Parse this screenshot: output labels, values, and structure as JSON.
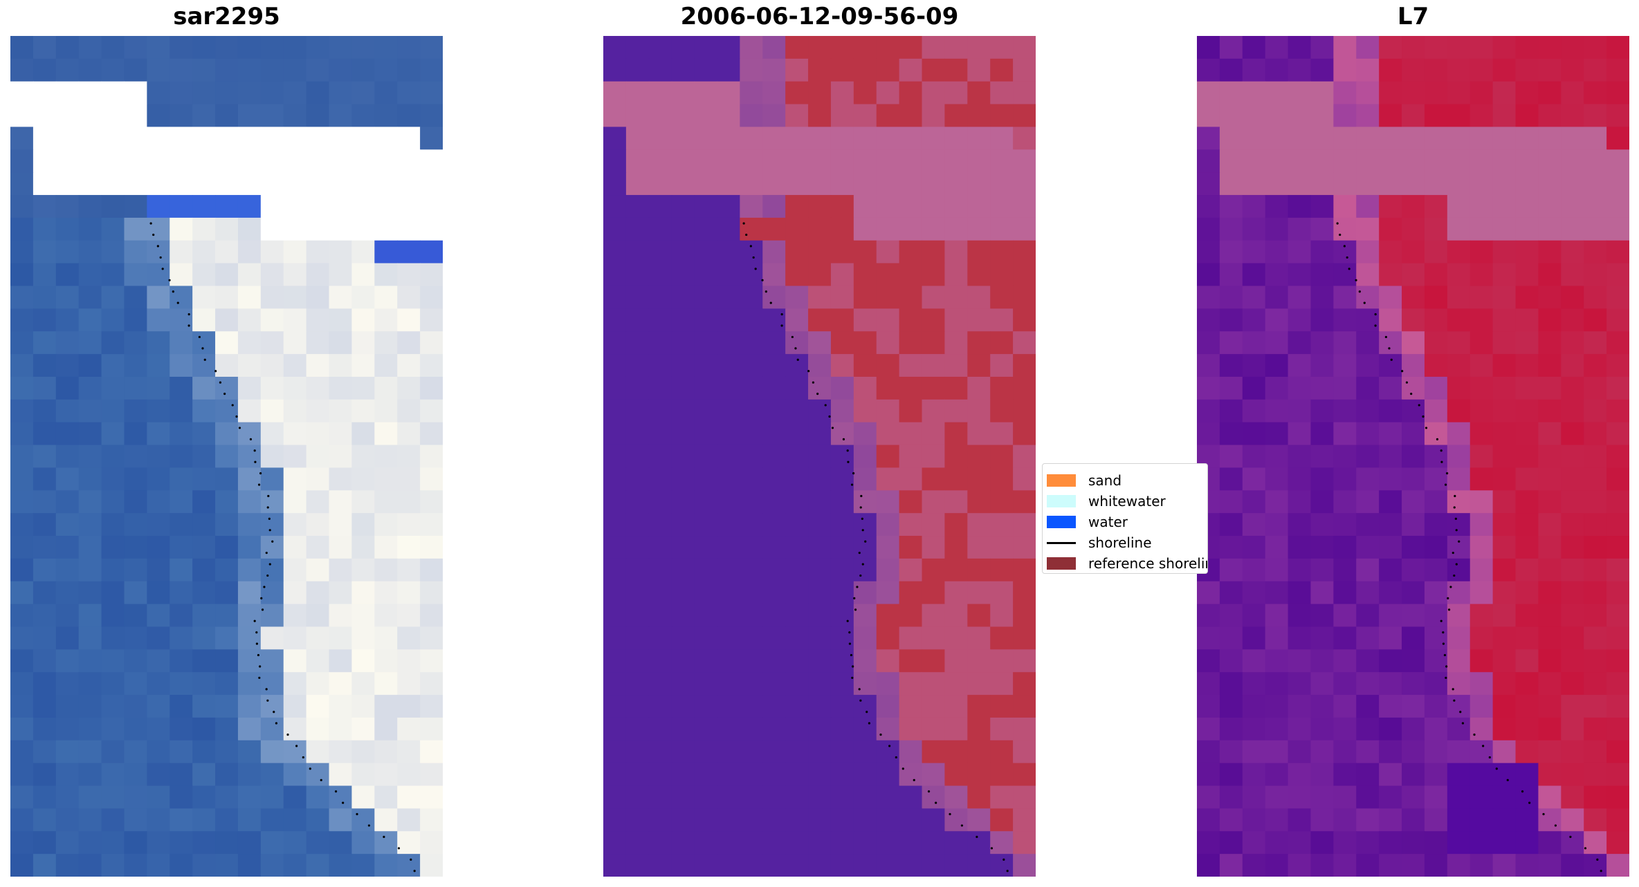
{
  "panels": [
    {
      "title": "sar2295",
      "image": "rgb-satellite-image"
    },
    {
      "title": "2006-06-12-09-56-09",
      "image": "classification-image"
    },
    {
      "title": "L7",
      "image": "index-image"
    }
  ],
  "legend": [
    {
      "label": "sand",
      "color": "#ff8c3a"
    },
    {
      "label": "whitewater",
      "color": "#cdfcfc"
    },
    {
      "label": "water",
      "color": "#0a56ff"
    },
    {
      "label": "shoreline",
      "color": "#000000"
    },
    {
      "label": "reference shoreline",
      "color": "#8f2f36"
    }
  ],
  "colors": {
    "cloud_mask": "#ffffff",
    "class_water": "#5522a0",
    "class_cloud": "#bc6597",
    "class_sand": "#bb3446",
    "index_low": "#520a9e",
    "index_high": "#c50632"
  }
}
